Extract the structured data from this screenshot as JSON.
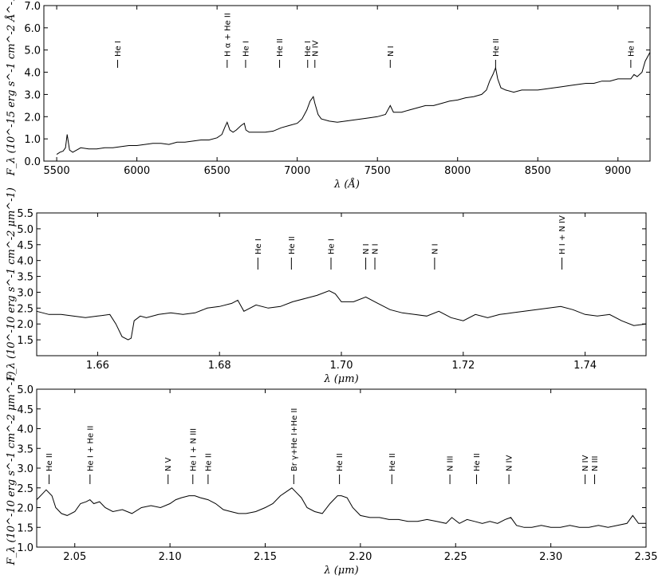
{
  "chart_data": [
    {
      "type": "line",
      "xlabel": "λ (Å)",
      "ylabel": "F_λ  (10^-15 erg s^-1 cm^-2 Å^-1)",
      "xlim": [
        5420,
        9200
      ],
      "ylim": [
        0,
        7
      ],
      "xticks": [
        5500,
        6000,
        6500,
        7000,
        7500,
        8000,
        8500,
        9000
      ],
      "yticks": [
        0.0,
        1.0,
        2.0,
        3.0,
        4.0,
        5.0,
        6.0,
        7.0
      ],
      "ytick_decimals": 1,
      "grid": false,
      "line_labels": [
        {
          "x": 5880,
          "label": "He I"
        },
        {
          "x": 6563,
          "label": "H α + He II"
        },
        {
          "x": 6678,
          "label": "He I"
        },
        {
          "x": 6890,
          "label": "He II"
        },
        {
          "x": 7065,
          "label": "He I"
        },
        {
          "x": 7110,
          "label": "N IV"
        },
        {
          "x": 7580,
          "label": "N I"
        },
        {
          "x": 8237,
          "label": "He II"
        },
        {
          "x": 9080,
          "label": "He I"
        }
      ],
      "series": [
        {
          "x": [
            5500,
            5520,
            5540,
            5555,
            5565,
            5580,
            5600,
            5650,
            5700,
            5750,
            5800,
            5850,
            5900,
            5950,
            6000,
            6050,
            6100,
            6150,
            6200,
            6250,
            6300,
            6350,
            6400,
            6450,
            6500,
            6530,
            6550,
            6563,
            6580,
            6600,
            6620,
            6650,
            6670,
            6680,
            6700,
            6750,
            6800,
            6850,
            6900,
            6950,
            7000,
            7030,
            7060,
            7080,
            7100,
            7110,
            7130,
            7150,
            7200,
            7250,
            7300,
            7350,
            7400,
            7450,
            7500,
            7550,
            7580,
            7600,
            7650,
            7700,
            7750,
            7800,
            7850,
            7900,
            7950,
            8000,
            8050,
            8100,
            8150,
            8180,
            8200,
            8220,
            8237,
            8250,
            8270,
            8300,
            8350,
            8400,
            8450,
            8500,
            8550,
            8600,
            8650,
            8700,
            8750,
            8800,
            8850,
            8900,
            8950,
            9000,
            9050,
            9080,
            9100,
            9120,
            9150,
            9170,
            9200
          ],
          "values": [
            0.3,
            0.4,
            0.45,
            0.6,
            1.2,
            0.5,
            0.4,
            0.6,
            0.55,
            0.55,
            0.6,
            0.6,
            0.65,
            0.7,
            0.7,
            0.75,
            0.8,
            0.8,
            0.75,
            0.85,
            0.85,
            0.9,
            0.95,
            0.95,
            1.05,
            1.2,
            1.55,
            1.75,
            1.4,
            1.3,
            1.4,
            1.6,
            1.7,
            1.4,
            1.3,
            1.3,
            1.3,
            1.35,
            1.5,
            1.6,
            1.7,
            1.9,
            2.3,
            2.7,
            2.9,
            2.6,
            2.1,
            1.9,
            1.8,
            1.75,
            1.8,
            1.85,
            1.9,
            1.95,
            2.0,
            2.1,
            2.5,
            2.2,
            2.2,
            2.3,
            2.4,
            2.5,
            2.5,
            2.6,
            2.7,
            2.75,
            2.85,
            2.9,
            3.0,
            3.2,
            3.6,
            3.9,
            4.2,
            3.7,
            3.3,
            3.2,
            3.1,
            3.2,
            3.2,
            3.2,
            3.25,
            3.3,
            3.35,
            3.4,
            3.45,
            3.5,
            3.5,
            3.6,
            3.6,
            3.7,
            3.7,
            3.7,
            3.9,
            3.8,
            4.0,
            4.5,
            4.9
          ]
        }
      ]
    },
    {
      "type": "line",
      "xlabel": "λ (μm)",
      "ylabel": "F_λ  (10^-10 erg s^-1 cm^-2 μm^-1)",
      "xlim": [
        1.65,
        1.75
      ],
      "ylim": [
        1.0,
        5.5
      ],
      "xticks": [
        1.66,
        1.68,
        1.7,
        1.72,
        1.74
      ],
      "yticks": [
        1.5,
        2.0,
        2.5,
        3.0,
        3.5,
        4.0,
        4.5,
        5.0,
        5.5
      ],
      "ytick_decimals": 2,
      "xtick_decimals": 2,
      "grid": false,
      "line_labels": [
        {
          "x": 1.6863,
          "label": "He I"
        },
        {
          "x": 1.6918,
          "label": "He II"
        },
        {
          "x": 1.6983,
          "label": "He I"
        },
        {
          "x": 1.704,
          "label": "N I"
        },
        {
          "x": 1.7055,
          "label": "N I"
        },
        {
          "x": 1.7153,
          "label": "N I"
        },
        {
          "x": 1.7362,
          "label": "H I + N IV"
        }
      ],
      "series": [
        {
          "x": [
            1.65,
            1.652,
            1.654,
            1.656,
            1.658,
            1.66,
            1.662,
            1.663,
            1.664,
            1.665,
            1.6655,
            1.666,
            1.667,
            1.668,
            1.67,
            1.672,
            1.674,
            1.676,
            1.678,
            1.68,
            1.682,
            1.683,
            1.684,
            1.686,
            1.688,
            1.69,
            1.692,
            1.694,
            1.696,
            1.698,
            1.699,
            1.7,
            1.702,
            1.704,
            1.706,
            1.708,
            1.71,
            1.712,
            1.714,
            1.716,
            1.718,
            1.72,
            1.722,
            1.724,
            1.726,
            1.728,
            1.73,
            1.732,
            1.734,
            1.736,
            1.738,
            1.74,
            1.742,
            1.744,
            1.746,
            1.748,
            1.75
          ],
          "values": [
            2.4,
            2.3,
            2.3,
            2.25,
            2.2,
            2.25,
            2.3,
            2.0,
            1.6,
            1.5,
            1.55,
            2.1,
            2.25,
            2.2,
            2.3,
            2.35,
            2.3,
            2.35,
            2.5,
            2.55,
            2.65,
            2.75,
            2.4,
            2.6,
            2.5,
            2.55,
            2.7,
            2.8,
            2.9,
            3.05,
            2.95,
            2.7,
            2.7,
            2.85,
            2.65,
            2.45,
            2.35,
            2.3,
            2.25,
            2.4,
            2.2,
            2.1,
            2.3,
            2.2,
            2.3,
            2.35,
            2.4,
            2.45,
            2.5,
            2.55,
            2.45,
            2.3,
            2.25,
            2.3,
            2.1,
            1.95,
            2.0
          ]
        }
      ]
    },
    {
      "type": "line",
      "xlabel": "λ (μm)",
      "ylabel": "F_λ  (10^-10 erg s^-1 cm^-2 μm^-1)",
      "xlim": [
        2.03,
        2.35
      ],
      "ylim": [
        1.0,
        5.0
      ],
      "xticks": [
        2.05,
        2.1,
        2.15,
        2.2,
        2.25,
        2.3,
        2.35
      ],
      "yticks": [
        1.0,
        1.5,
        2.0,
        2.5,
        3.0,
        3.5,
        4.0,
        4.5,
        5.0
      ],
      "ytick_decimals": 1,
      "xtick_decimals": 2,
      "grid": false,
      "line_labels": [
        {
          "x": 2.0365,
          "label": "He II"
        },
        {
          "x": 2.058,
          "label": "He I + He II"
        },
        {
          "x": 2.099,
          "label": "N V"
        },
        {
          "x": 2.112,
          "label": "He I + N III"
        },
        {
          "x": 2.12,
          "label": "He II"
        },
        {
          "x": 2.165,
          "label": "Br γ+He I+He II"
        },
        {
          "x": 2.189,
          "label": "He II"
        },
        {
          "x": 2.2165,
          "label": "He II"
        },
        {
          "x": 2.247,
          "label": "N III"
        },
        {
          "x": 2.261,
          "label": "He II"
        },
        {
          "x": 2.278,
          "label": "N IV"
        },
        {
          "x": 2.318,
          "label": "N IV"
        },
        {
          "x": 2.323,
          "label": "N III"
        }
      ],
      "series": [
        {
          "x": [
            2.03,
            2.033,
            2.035,
            2.038,
            2.04,
            2.043,
            2.046,
            2.05,
            2.053,
            2.056,
            2.058,
            2.06,
            2.063,
            2.066,
            2.07,
            2.075,
            2.08,
            2.085,
            2.09,
            2.095,
            2.1,
            2.103,
            2.106,
            2.11,
            2.113,
            2.116,
            2.12,
            2.124,
            2.128,
            2.132,
            2.136,
            2.14,
            2.145,
            2.15,
            2.154,
            2.158,
            2.161,
            2.164,
            2.166,
            2.169,
            2.172,
            2.176,
            2.18,
            2.184,
            2.188,
            2.19,
            2.193,
            2.196,
            2.2,
            2.205,
            2.21,
            2.215,
            2.22,
            2.225,
            2.23,
            2.235,
            2.24,
            2.245,
            2.248,
            2.252,
            2.256,
            2.26,
            2.264,
            2.268,
            2.272,
            2.276,
            2.279,
            2.282,
            2.286,
            2.29,
            2.295,
            2.3,
            2.305,
            2.31,
            2.315,
            2.32,
            2.325,
            2.33,
            2.335,
            2.34,
            2.343,
            2.346,
            2.35
          ],
          "values": [
            2.2,
            2.35,
            2.45,
            2.3,
            2.0,
            1.85,
            1.8,
            1.9,
            2.1,
            2.15,
            2.2,
            2.1,
            2.15,
            2.0,
            1.9,
            1.95,
            1.85,
            2.0,
            2.05,
            2.0,
            2.1,
            2.2,
            2.25,
            2.3,
            2.3,
            2.25,
            2.2,
            2.1,
            1.95,
            1.9,
            1.85,
            1.85,
            1.9,
            2.0,
            2.1,
            2.3,
            2.4,
            2.5,
            2.4,
            2.25,
            2.0,
            1.9,
            1.85,
            2.1,
            2.3,
            2.3,
            2.25,
            2.0,
            1.8,
            1.75,
            1.75,
            1.7,
            1.7,
            1.65,
            1.65,
            1.7,
            1.65,
            1.6,
            1.75,
            1.6,
            1.7,
            1.65,
            1.6,
            1.65,
            1.6,
            1.7,
            1.75,
            1.55,
            1.5,
            1.5,
            1.55,
            1.5,
            1.5,
            1.55,
            1.5,
            1.5,
            1.55,
            1.5,
            1.55,
            1.6,
            1.8,
            1.6,
            1.6
          ]
        }
      ]
    }
  ]
}
